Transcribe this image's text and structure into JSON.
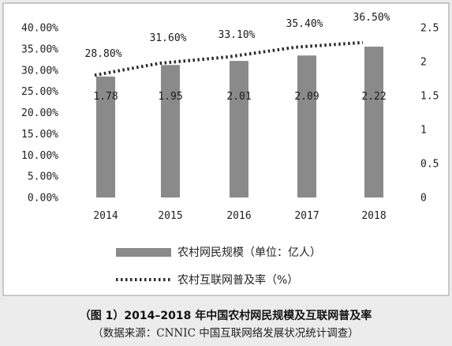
{
  "chart_data": {
    "type": "bar+line",
    "categories": [
      "2014",
      "2015",
      "2016",
      "2017",
      "2018"
    ],
    "series": [
      {
        "name": "农村网民规模（单位：亿人）",
        "type": "bar",
        "axis": "right",
        "values": [
          1.78,
          1.95,
          2.01,
          2.09,
          2.22
        ],
        "labels": [
          "1.78",
          "1.95",
          "2.01",
          "2.09",
          "2.22"
        ],
        "color": "#8a8a8a"
      },
      {
        "name": "农村互联网普及率（%）",
        "type": "line",
        "style": "dotted",
        "axis": "left",
        "values": [
          28.8,
          31.6,
          33.1,
          35.4,
          36.5
        ],
        "labels": [
          "28.80%",
          "31.60%",
          "33.10%",
          "35.40%",
          "36.50%"
        ],
        "color": "#2a2a2a"
      }
    ],
    "y_left": {
      "ylim": [
        0,
        40
      ],
      "ticks": [
        0,
        5,
        10,
        15,
        20,
        25,
        30,
        35,
        40
      ],
      "tick_labels": [
        "0.00%",
        "5.00%",
        "10.00%",
        "15.00%",
        "20.00%",
        "25.00%",
        "30.00%",
        "35.00%",
        "40.00%"
      ]
    },
    "y_right": {
      "ylim": [
        0,
        2.5
      ],
      "ticks": [
        0,
        0.5,
        1,
        1.5,
        2,
        2.5
      ],
      "tick_labels": [
        "0",
        "0.5",
        "1",
        "1.5",
        "2",
        "2.5"
      ]
    },
    "grid": false,
    "legend_position": "bottom"
  },
  "caption": {
    "title": "（图 1）2014–2018 年中国农村网民规模及互联网普及率",
    "source": "（数据来源：CNNIC 中国互联网络发展状况统计调查）"
  }
}
